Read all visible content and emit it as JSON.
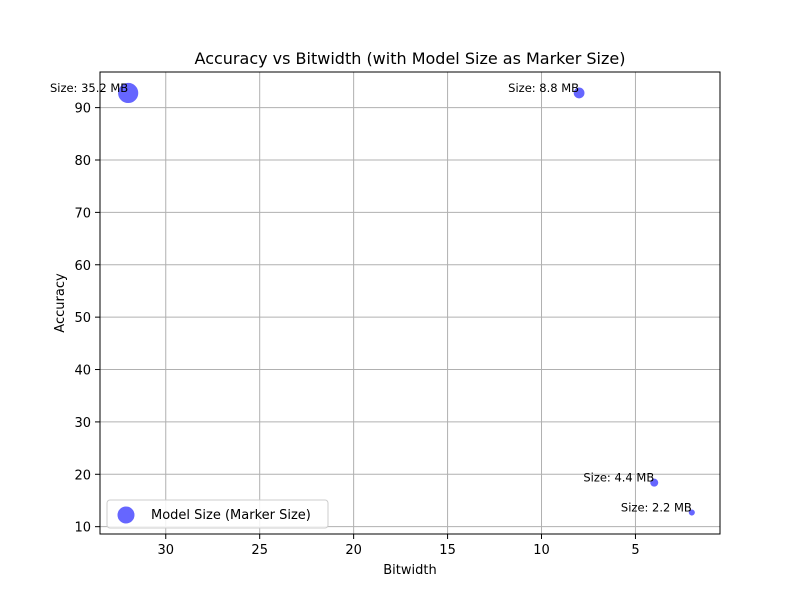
{
  "chart_data": {
    "type": "scatter",
    "title": "Accuracy vs Bitwidth (with Model Size as Marker Size)",
    "xlabel": "Bitwidth",
    "ylabel": "Accuracy",
    "x_axis_inverted": true,
    "xlim": [
      33.5,
      0.5
    ],
    "ylim": [
      8.6,
      96.8
    ],
    "xticks": [
      30,
      25,
      20,
      15,
      10,
      5
    ],
    "yticks": [
      10,
      20,
      30,
      40,
      50,
      60,
      70,
      80,
      90
    ],
    "grid": true,
    "legend": {
      "label": "Model Size (Marker Size)",
      "placement": "lower-left"
    },
    "marker_color": "#0000ff",
    "marker_alpha": 0.6,
    "points": [
      {
        "bitwidth": 32,
        "accuracy": 92.8,
        "size_mb": 35.2,
        "annotation": "Size: 35.2 MB"
      },
      {
        "bitwidth": 8,
        "accuracy": 92.8,
        "size_mb": 8.8,
        "annotation": "Size: 8.8 MB"
      },
      {
        "bitwidth": 4,
        "accuracy": 18.4,
        "size_mb": 4.4,
        "annotation": "Size: 4.4 MB"
      },
      {
        "bitwidth": 2,
        "accuracy": 12.7,
        "size_mb": 2.2,
        "annotation": "Size: 2.2 MB"
      }
    ]
  }
}
